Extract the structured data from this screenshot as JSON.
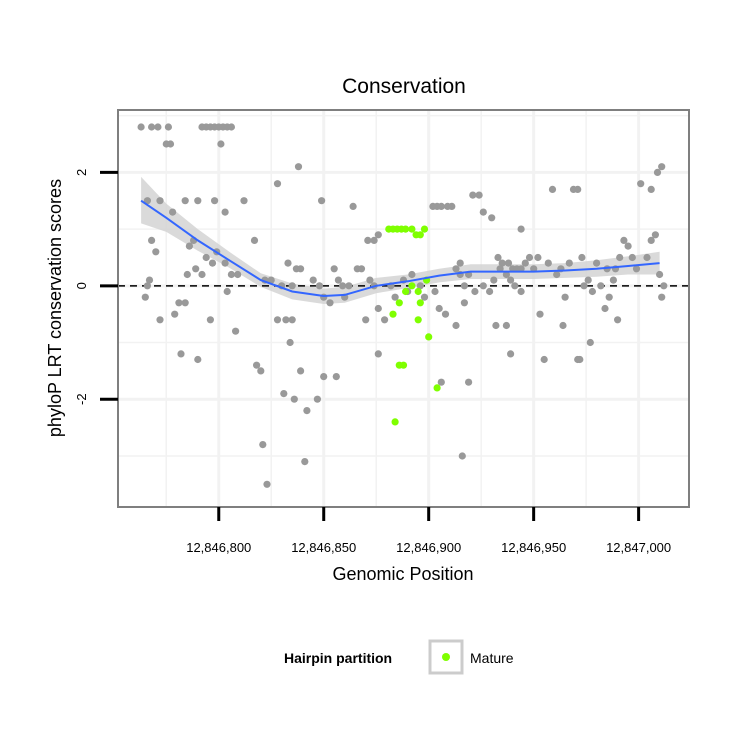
{
  "chart_data": {
    "type": "scatter",
    "title": "Conservation",
    "xlabel": "Genomic Position",
    "ylabel": "phyloP LRT conservation scores",
    "xlim": [
      12846752,
      12847024
    ],
    "ylim": [
      -3.9,
      3.1
    ],
    "x_ticks": [
      12846800,
      12846850,
      12846900,
      12846950,
      12847000
    ],
    "x_tick_labels": [
      "12,846,800",
      "12,846,850",
      "12,846,900",
      "12,846,950",
      "12,847,000"
    ],
    "y_ticks": [
      -2,
      0,
      2
    ],
    "y_tick_labels": [
      "-2",
      "0",
      "2"
    ],
    "reference_line": {
      "y": 0,
      "style": "dashed"
    },
    "colors": {
      "other": "#999999",
      "mature": "#7FFF00",
      "smooth": "#3366FF",
      "ribbon": "#D4D4D4",
      "panel_border": "#7F7F7F",
      "grid": "#F2F2F2"
    },
    "legend": {
      "title": "Hairpin partition",
      "entries": [
        {
          "label": "Mature",
          "color": "#7FFF00"
        }
      ],
      "position": "bottom"
    },
    "series": [
      {
        "name": "Other",
        "points": [
          [
            12846763,
            2.8
          ],
          [
            12846768,
            2.8
          ],
          [
            12846771,
            2.8
          ],
          [
            12846775,
            2.5
          ],
          [
            12846777,
            2.5
          ],
          [
            12846776,
            2.8
          ],
          [
            12846792,
            2.8
          ],
          [
            12846794,
            2.8
          ],
          [
            12846796,
            2.8
          ],
          [
            12846798,
            2.8
          ],
          [
            12846800,
            2.8
          ],
          [
            12846802,
            2.8
          ],
          [
            12846804,
            2.8
          ],
          [
            12846806,
            2.8
          ],
          [
            12846801,
            2.5
          ],
          [
            12846812,
            1.5
          ],
          [
            12846803,
            1.3
          ],
          [
            12846798,
            1.5
          ],
          [
            12846790,
            1.5
          ],
          [
            12846784,
            1.5
          ],
          [
            12846778,
            1.3
          ],
          [
            12846772,
            1.5
          ],
          [
            12846766,
            1.5
          ],
          [
            12846768,
            0.8
          ],
          [
            12846770,
            0.6
          ],
          [
            12846767,
            0.1
          ],
          [
            12846765,
            -0.2
          ],
          [
            12846766,
            0.0
          ],
          [
            12846772,
            -0.6
          ],
          [
            12846779,
            -0.5
          ],
          [
            12846781,
            -0.3
          ],
          [
            12846784,
            -0.3
          ],
          [
            12846785,
            0.2
          ],
          [
            12846789,
            0.3
          ],
          [
            12846792,
            0.2
          ],
          [
            12846786,
            0.7
          ],
          [
            12846788,
            0.8
          ],
          [
            12846794,
            0.5
          ],
          [
            12846797,
            0.4
          ],
          [
            12846799,
            0.6
          ],
          [
            12846803,
            0.4
          ],
          [
            12846806,
            0.2
          ],
          [
            12846809,
            0.2
          ],
          [
            12846804,
            -0.1
          ],
          [
            12846796,
            -0.6
          ],
          [
            12846808,
            -0.8
          ],
          [
            12846782,
            -1.2
          ],
          [
            12846790,
            -1.3
          ],
          [
            12846818,
            -1.4
          ],
          [
            12846820,
            -1.5
          ],
          [
            12846821,
            -2.8
          ],
          [
            12846823,
            -3.5
          ],
          [
            12846817,
            0.8
          ],
          [
            12846822,
            0.1
          ],
          [
            12846825,
            0.1
          ],
          [
            12846828,
            1.8
          ],
          [
            12846830,
            0.0
          ],
          [
            12846833,
            0.4
          ],
          [
            12846835,
            0.0
          ],
          [
            12846837,
            0.3
          ],
          [
            12846839,
            0.3
          ],
          [
            12846828,
            -0.6
          ],
          [
            12846832,
            -0.6
          ],
          [
            12846835,
            -0.6
          ],
          [
            12846834,
            -1.0
          ],
          [
            12846839,
            -1.5
          ],
          [
            12846831,
            -1.9
          ],
          [
            12846836,
            -2.0
          ],
          [
            12846842,
            -2.2
          ],
          [
            12846847,
            -2.0
          ],
          [
            12846841,
            -3.1
          ],
          [
            12846838,
            2.1
          ],
          [
            12846845,
            0.1
          ],
          [
            12846848,
            0.0
          ],
          [
            12846850,
            -0.2
          ],
          [
            12846853,
            -0.3
          ],
          [
            12846855,
            0.3
          ],
          [
            12846857,
            0.1
          ],
          [
            12846859,
            0.0
          ],
          [
            12846862,
            0.0
          ],
          [
            12846864,
            1.4
          ],
          [
            12846849,
            1.5
          ],
          [
            12846850,
            -1.6
          ],
          [
            12846856,
            -1.6
          ],
          [
            12846860,
            -0.2
          ],
          [
            12846866,
            0.3
          ],
          [
            12846868,
            0.3
          ],
          [
            12846871,
            0.8
          ],
          [
            12846874,
            0.8
          ],
          [
            12846876,
            0.9
          ],
          [
            12846872,
            0.1
          ],
          [
            12846874,
            0.0
          ],
          [
            12846876,
            -0.4
          ],
          [
            12846879,
            -0.6
          ],
          [
            12846876,
            -1.2
          ],
          [
            12846870,
            -0.6
          ],
          [
            12846882,
            0.0
          ],
          [
            12846884,
            -0.2
          ],
          [
            12846888,
            0.1
          ],
          [
            12846890,
            -0.1
          ],
          [
            12846892,
            0.2
          ],
          [
            12846896,
            0.0
          ],
          [
            12846898,
            -0.2
          ],
          [
            12846902,
            1.4
          ],
          [
            12846904,
            1.4
          ],
          [
            12846906,
            1.4
          ],
          [
            12846909,
            1.4
          ],
          [
            12846911,
            1.4
          ],
          [
            12846913,
            0.3
          ],
          [
            12846915,
            0.4
          ],
          [
            12846915,
            0.2
          ],
          [
            12846917,
            0.0
          ],
          [
            12846919,
            0.2
          ],
          [
            12846917,
            -0.3
          ],
          [
            12846913,
            -0.7
          ],
          [
            12846903,
            -0.1
          ],
          [
            12846905,
            -0.4
          ],
          [
            12846908,
            -0.5
          ],
          [
            12846906,
            -1.7
          ],
          [
            12846916,
            -3.0
          ],
          [
            12846919,
            -1.7
          ],
          [
            12846921,
            1.6
          ],
          [
            12846924,
            1.6
          ],
          [
            12846926,
            1.3
          ],
          [
            12846930,
            1.2
          ],
          [
            12846933,
            0.5
          ],
          [
            12846935,
            0.4
          ],
          [
            12846938,
            0.4
          ],
          [
            12846940,
            0.3
          ],
          [
            12846942,
            0.3
          ],
          [
            12846944,
            0.3
          ],
          [
            12846946,
            0.4
          ],
          [
            12846948,
            0.5
          ],
          [
            12846922,
            -0.1
          ],
          [
            12846926,
            0.0
          ],
          [
            12846929,
            -0.1
          ],
          [
            12846931,
            0.1
          ],
          [
            12846934,
            0.3
          ],
          [
            12846937,
            0.2
          ],
          [
            12846939,
            0.1
          ],
          [
            12846941,
            0.0
          ],
          [
            12846944,
            -0.1
          ],
          [
            12846932,
            -0.7
          ],
          [
            12846937,
            -0.7
          ],
          [
            12846939,
            -1.2
          ],
          [
            12846944,
            1.0
          ],
          [
            12846950,
            0.3
          ],
          [
            12846952,
            0.5
          ],
          [
            12846953,
            -0.5
          ],
          [
            12846955,
            -1.3
          ],
          [
            12846957,
            0.4
          ],
          [
            12846959,
            1.7
          ],
          [
            12846961,
            0.2
          ],
          [
            12846963,
            0.3
          ],
          [
            12846965,
            -0.2
          ],
          [
            12846967,
            0.4
          ],
          [
            12846969,
            1.7
          ],
          [
            12846971,
            1.7
          ],
          [
            12846973,
            0.5
          ],
          [
            12846974,
            0.0
          ],
          [
            12846976,
            0.1
          ],
          [
            12846978,
            -0.1
          ],
          [
            12846980,
            0.4
          ],
          [
            12846982,
            0.0
          ],
          [
            12846984,
            -0.4
          ],
          [
            12846986,
            -0.2
          ],
          [
            12846988,
            0.1
          ],
          [
            12846990,
            -0.6
          ],
          [
            12846964,
            -0.7
          ],
          [
            12846971,
            -1.3
          ],
          [
            12846972,
            -1.3
          ],
          [
            12846977,
            -1.0
          ],
          [
            12846985,
            0.3
          ],
          [
            12846989,
            0.3
          ],
          [
            12846991,
            0.5
          ],
          [
            12846993,
            0.8
          ],
          [
            12846995,
            0.7
          ],
          [
            12846997,
            0.5
          ],
          [
            12846999,
            0.3
          ],
          [
            12847001,
            1.8
          ],
          [
            12847004,
            0.5
          ],
          [
            12847006,
            0.8
          ],
          [
            12847008,
            0.9
          ],
          [
            12847009,
            2.0
          ],
          [
            12847011,
            2.1
          ],
          [
            12847006,
            1.7
          ],
          [
            12847010,
            0.2
          ],
          [
            12847011,
            -0.2
          ],
          [
            12847012,
            0.0
          ]
        ]
      },
      {
        "name": "Mature",
        "points": [
          [
            12846881,
            1.0
          ],
          [
            12846883,
            1.0
          ],
          [
            12846885,
            1.0
          ],
          [
            12846887,
            1.0
          ],
          [
            12846889,
            1.0
          ],
          [
            12846892,
            1.0
          ],
          [
            12846894,
            0.9
          ],
          [
            12846896,
            0.9
          ],
          [
            12846898,
            1.0
          ],
          [
            12846883,
            -0.5
          ],
          [
            12846886,
            -0.3
          ],
          [
            12846889,
            -0.1
          ],
          [
            12846892,
            0.0
          ],
          [
            12846895,
            -0.6
          ],
          [
            12846896,
            -0.3
          ],
          [
            12846899,
            0.1
          ],
          [
            12846900,
            -0.9
          ],
          [
            12846886,
            -1.4
          ],
          [
            12846888,
            -1.4
          ],
          [
            12846884,
            -2.4
          ],
          [
            12846904,
            -1.8
          ],
          [
            12846895,
            -0.1
          ]
        ]
      },
      {
        "name": "Smoothed fit",
        "x": [
          12846763,
          12846775,
          12846790,
          12846805,
          12846820,
          12846835,
          12846850,
          12846860,
          12846875,
          12846890,
          12846905,
          12846920,
          12846935,
          12846950,
          12846965,
          12846980,
          12846995,
          12847010
        ],
        "y": [
          1.5,
          1.2,
          0.8,
          0.45,
          0.1,
          -0.1,
          -0.18,
          -0.16,
          0.0,
          0.08,
          0.18,
          0.25,
          0.25,
          0.25,
          0.27,
          0.3,
          0.35,
          0.4
        ],
        "se_lower": [
          1.1,
          0.95,
          0.62,
          0.32,
          -0.02,
          -0.24,
          -0.32,
          -0.3,
          -0.13,
          -0.04,
          0.06,
          0.12,
          0.12,
          0.12,
          0.14,
          0.16,
          0.2,
          0.2
        ],
        "se_upper": [
          1.92,
          1.45,
          1.0,
          0.6,
          0.22,
          0.04,
          -0.05,
          -0.02,
          0.14,
          0.2,
          0.3,
          0.38,
          0.38,
          0.38,
          0.4,
          0.45,
          0.52,
          0.6
        ]
      }
    ]
  }
}
